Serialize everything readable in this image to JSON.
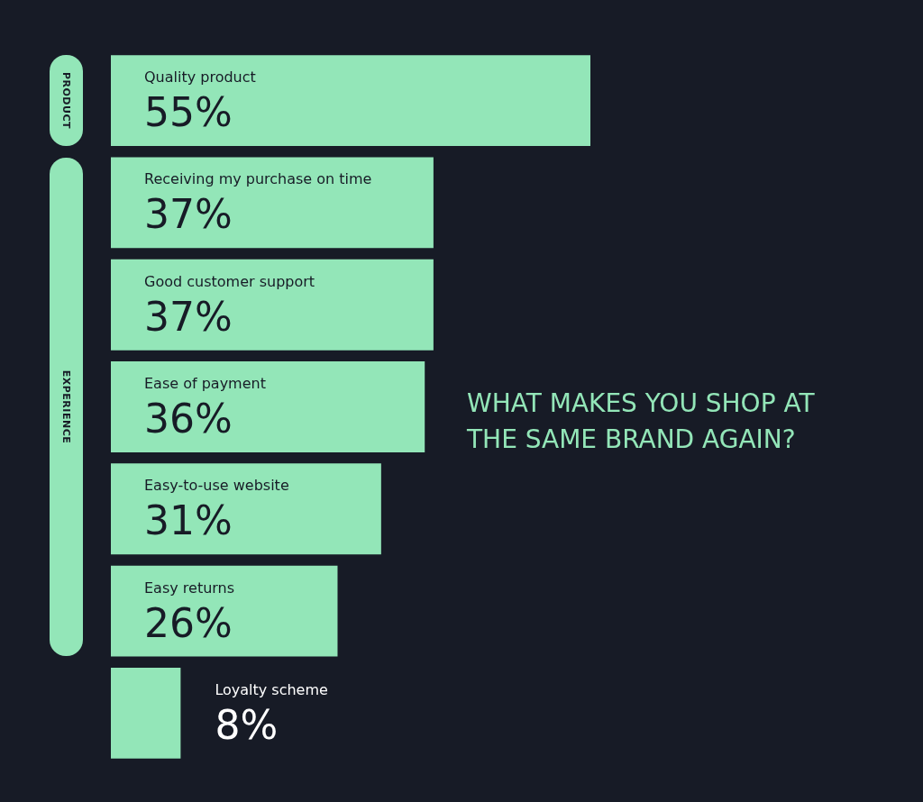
{
  "chart_data": {
    "type": "bar",
    "orientation": "horizontal",
    "title": "WHAT MAKES YOU SHOP AT THE SAME BRAND AGAIN?",
    "categories": [
      "Quality product",
      "Receiving my purchase on time",
      "Good customer support",
      "Ease of payment",
      "Easy-to-use website",
      "Easy returns",
      "Loyalty scheme"
    ],
    "values": [
      55,
      37,
      37,
      36,
      31,
      26,
      8
    ],
    "value_labels": [
      "55%",
      "37%",
      "37%",
      "36%",
      "31%",
      "26%",
      "8%"
    ],
    "color": "#93e6b8",
    "annotations": [
      "PRODUCT",
      "EXPERIENCE"
    ]
  }
}
